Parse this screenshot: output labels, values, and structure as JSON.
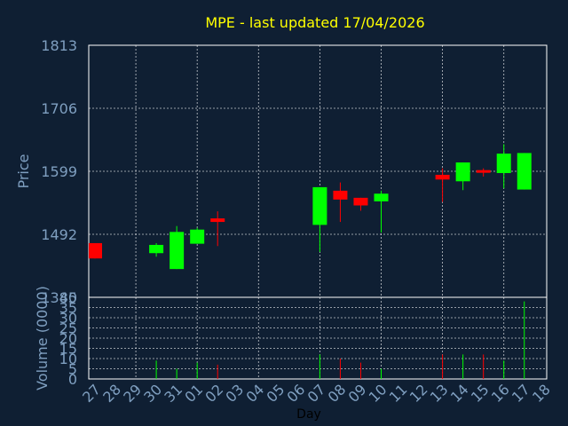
{
  "chart_data": {
    "type": "candlestick",
    "title": "MPE - last updated 17/04/2026",
    "xlabel": "Day",
    "price_panel": {
      "ylabel": "Price",
      "ylim": [
        1385,
        1813
      ],
      "yticks": [
        "1813",
        "1706",
        "1599",
        "1492",
        "1385"
      ],
      "grid": true
    },
    "volume_panel": {
      "ylabel": "Volume (0000)",
      "ylim": [
        0,
        40
      ],
      "yticks": [
        "40",
        "35",
        "30",
        "25",
        "20",
        "15",
        "10",
        "5",
        "0"
      ],
      "grid": true
    },
    "days": [
      "27",
      "28",
      "29",
      "30",
      "31",
      "01",
      "02",
      "03",
      "04",
      "05",
      "06",
      "07",
      "08",
      "09",
      "10",
      "11",
      "12",
      "13",
      "14",
      "15",
      "16",
      "17",
      "18"
    ],
    "candles": [
      {
        "day": "27",
        "open": 1477,
        "close": 1451,
        "high": 1477,
        "low": 1451,
        "volume": 0
      },
      {
        "day": "30",
        "open": 1460,
        "close": 1474,
        "high": 1477,
        "low": 1454,
        "volume": 9
      },
      {
        "day": "31",
        "open": 1433,
        "close": 1496,
        "high": 1506,
        "low": 1433,
        "volume": 5
      },
      {
        "day": "01",
        "open": 1476,
        "close": 1500,
        "high": 1503,
        "low": 1476,
        "volume": 8
      },
      {
        "day": "02",
        "open": 1519,
        "close": 1513,
        "high": 1531,
        "low": 1472,
        "volume": 7
      },
      {
        "day": "07",
        "open": 1508,
        "close": 1572,
        "high": 1572,
        "low": 1462,
        "volume": 12
      },
      {
        "day": "08",
        "open": 1566,
        "close": 1551,
        "high": 1580,
        "low": 1513,
        "volume": 10
      },
      {
        "day": "09",
        "open": 1554,
        "close": 1541,
        "high": 1554,
        "low": 1532,
        "volume": 8
      },
      {
        "day": "10",
        "open": 1548,
        "close": 1561,
        "high": 1566,
        "low": 1495,
        "volume": 5
      },
      {
        "day": "13",
        "open": 1593,
        "close": 1585,
        "high": 1604,
        "low": 1547,
        "volume": 12
      },
      {
        "day": "14",
        "open": 1582,
        "close": 1614,
        "high": 1614,
        "low": 1567,
        "volume": 12
      },
      {
        "day": "15",
        "open": 1601,
        "close": 1599,
        "high": 1604,
        "low": 1590,
        "volume": 12
      },
      {
        "day": "16",
        "open": 1596,
        "close": 1629,
        "high": 1645,
        "low": 1570,
        "volume": 9
      },
      {
        "day": "17",
        "open": 1568,
        "close": 1630,
        "high": 1630,
        "low": 1568,
        "volume": 38
      }
    ],
    "colors": {
      "background": "#0f1f33",
      "up": "#00ff00",
      "down": "#ff0000",
      "title": "#ffff00",
      "axis_text": "#7f9fc0",
      "frame": "#ffffff",
      "xlabel": "#000000"
    }
  }
}
